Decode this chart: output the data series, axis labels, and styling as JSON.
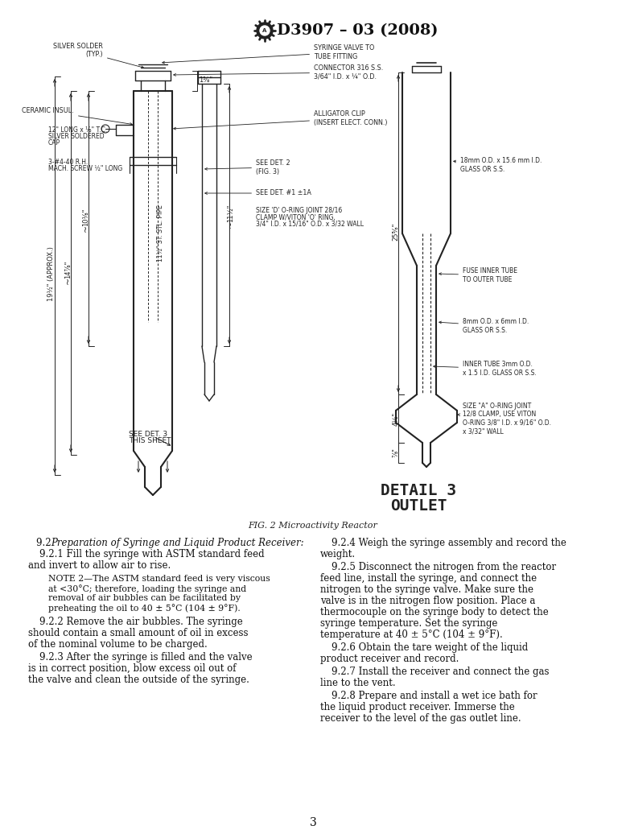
{
  "title": "D3907 – 03 (2008)",
  "fig_caption": "FIG. 2 Microactivity Reactor",
  "detail3_title": "DETAIL 3",
  "detail3_subtitle": "OUTLET",
  "page_number": "3",
  "bg": "#f5f5f0",
  "draw_color": "#222222",
  "left_col": [
    {
      "type": "heading",
      "text": "9.2  Preparation of Syringe and Liquid Product Receiver:",
      "indent": 28
    },
    {
      "type": "para",
      "text": "9.2.1  Fill the syringe with ASTM standard feed and invert to allow air to rise.",
      "indent": 38
    },
    {
      "type": "note",
      "text": "NOTE 2—The ASTM standard feed is very viscous at <30°C; therefore, loading the syringe and removal of air bubbles can be facilitated by preheating the oil to 40 ± 5°C (104 ± 9°F).",
      "indent": 50
    },
    {
      "type": "para",
      "text": "9.2.2  Remove the air bubbles. The syringe should contain a small amount of oil in excess of the nominal volume to be charged.",
      "indent": 38
    },
    {
      "type": "para",
      "text": "9.2.3  After the syringe is filled and the valve is in correct position, blow excess oil out of the valve and clean the outside of the syringe.",
      "indent": 38
    }
  ],
  "right_col": [
    {
      "type": "para",
      "text": "9.2.4  Weigh the syringe assembly and record the weight.",
      "indent": 38
    },
    {
      "type": "para",
      "text": "9.2.5  Disconnect the nitrogen from the reactor feed line, install the syringe, and connect the nitrogen to the syringe valve. Make sure the valve is in the nitrogen flow position. Place a thermocouple on the syringe body to detect the syringe temperature. Set the syringe temperature at 40 ± 5°C (104 ± 9°F).",
      "indent": 38
    },
    {
      "type": "para",
      "text": "9.2.6  Obtain the tare weight of the liquid product receiver and record.",
      "indent": 38
    },
    {
      "type": "para",
      "text": "9.2.7  Install the receiver and connect the gas line to the vent.",
      "indent": 38
    },
    {
      "type": "para",
      "text": "9.2.8  Prepare and install a wet ice bath for the liquid product receiver. Immerse the receiver to the level of the gas outlet line.",
      "indent": 38
    }
  ]
}
